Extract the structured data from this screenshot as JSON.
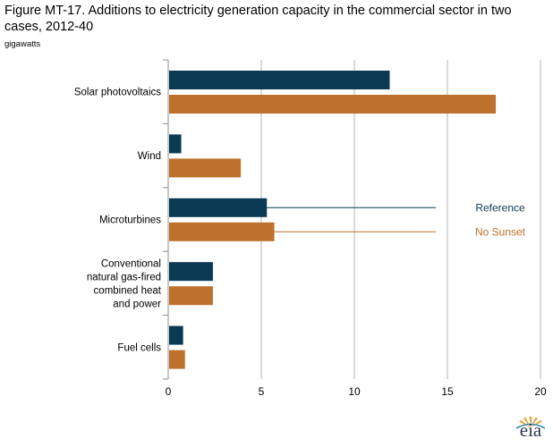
{
  "title": "Figure MT-17. Additions to electricity generation capacity in the commercial sector in two cases, 2012-40",
  "unit_label": "gigawatts",
  "logo_text": "eia",
  "colors": {
    "reference": "#0b3a55",
    "no_sunset": "#bd712c",
    "grid": "#b3b3b3",
    "axis": "#8c8c8c"
  },
  "chart_data": {
    "type": "bar",
    "orientation": "horizontal",
    "categories": [
      "Solar photovoltaics",
      "Wind",
      "Microturbines",
      "Conventional natural gas-fired combined heat and power",
      "Fuel cells"
    ],
    "category_lines": [
      [
        "Solar photovoltaics"
      ],
      [
        "Wind"
      ],
      [
        "Microturbines"
      ],
      [
        "Conventional",
        "natural gas-fired",
        "combined heat",
        "and power"
      ],
      [
        "Fuel cells"
      ]
    ],
    "series": [
      {
        "name": "Reference",
        "values": [
          11.9,
          0.7,
          5.3,
          2.4,
          0.8
        ]
      },
      {
        "name": "No Sunset",
        "values": [
          17.6,
          3.9,
          5.7,
          2.4,
          0.9
        ]
      }
    ],
    "xlim": [
      0,
      20
    ],
    "xticks": [
      "0",
      "5",
      "10",
      "15",
      "20"
    ],
    "xlabel": "",
    "ylabel": "gigawatts",
    "grid": true
  }
}
